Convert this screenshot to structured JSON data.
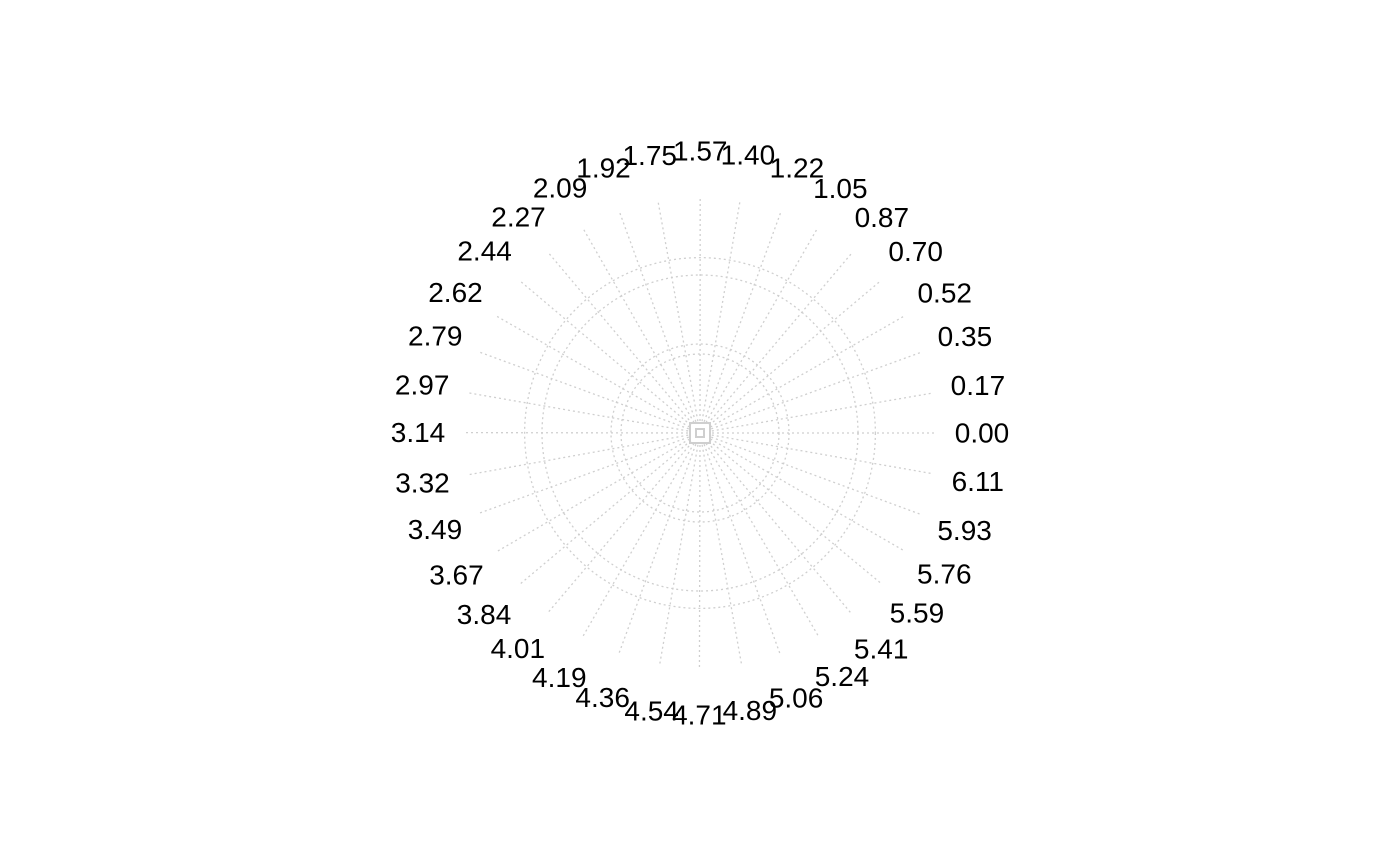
{
  "chart_data": {
    "type": "radial",
    "title": "",
    "grid": "dotted",
    "ring_count": 3,
    "angle_labels": [
      "0.00",
      "0.17",
      "0.35",
      "0.52",
      "0.70",
      "0.87",
      "1.05",
      "1.22",
      "1.40",
      "1.57",
      "1.75",
      "1.92",
      "2.09",
      "2.27",
      "2.44",
      "2.62",
      "2.79",
      "2.97",
      "3.14",
      "3.32",
      "3.49",
      "3.67",
      "3.84",
      "4.01",
      "4.19",
      "4.36",
      "4.54",
      "4.71",
      "4.89",
      "5.06",
      "5.24",
      "5.41",
      "5.59",
      "5.76",
      "5.93",
      "6.11"
    ],
    "angles": [
      0.0,
      0.17,
      0.35,
      0.52,
      0.7,
      0.87,
      1.05,
      1.22,
      1.4,
      1.57,
      1.75,
      1.92,
      2.09,
      2.27,
      2.44,
      2.62,
      2.79,
      2.97,
      3.14,
      3.32,
      3.49,
      3.67,
      3.84,
      4.01,
      4.19,
      4.36,
      4.54,
      4.71,
      4.89,
      5.06,
      5.24,
      5.41,
      5.59,
      5.76,
      5.93,
      6.11
    ],
    "series": []
  }
}
